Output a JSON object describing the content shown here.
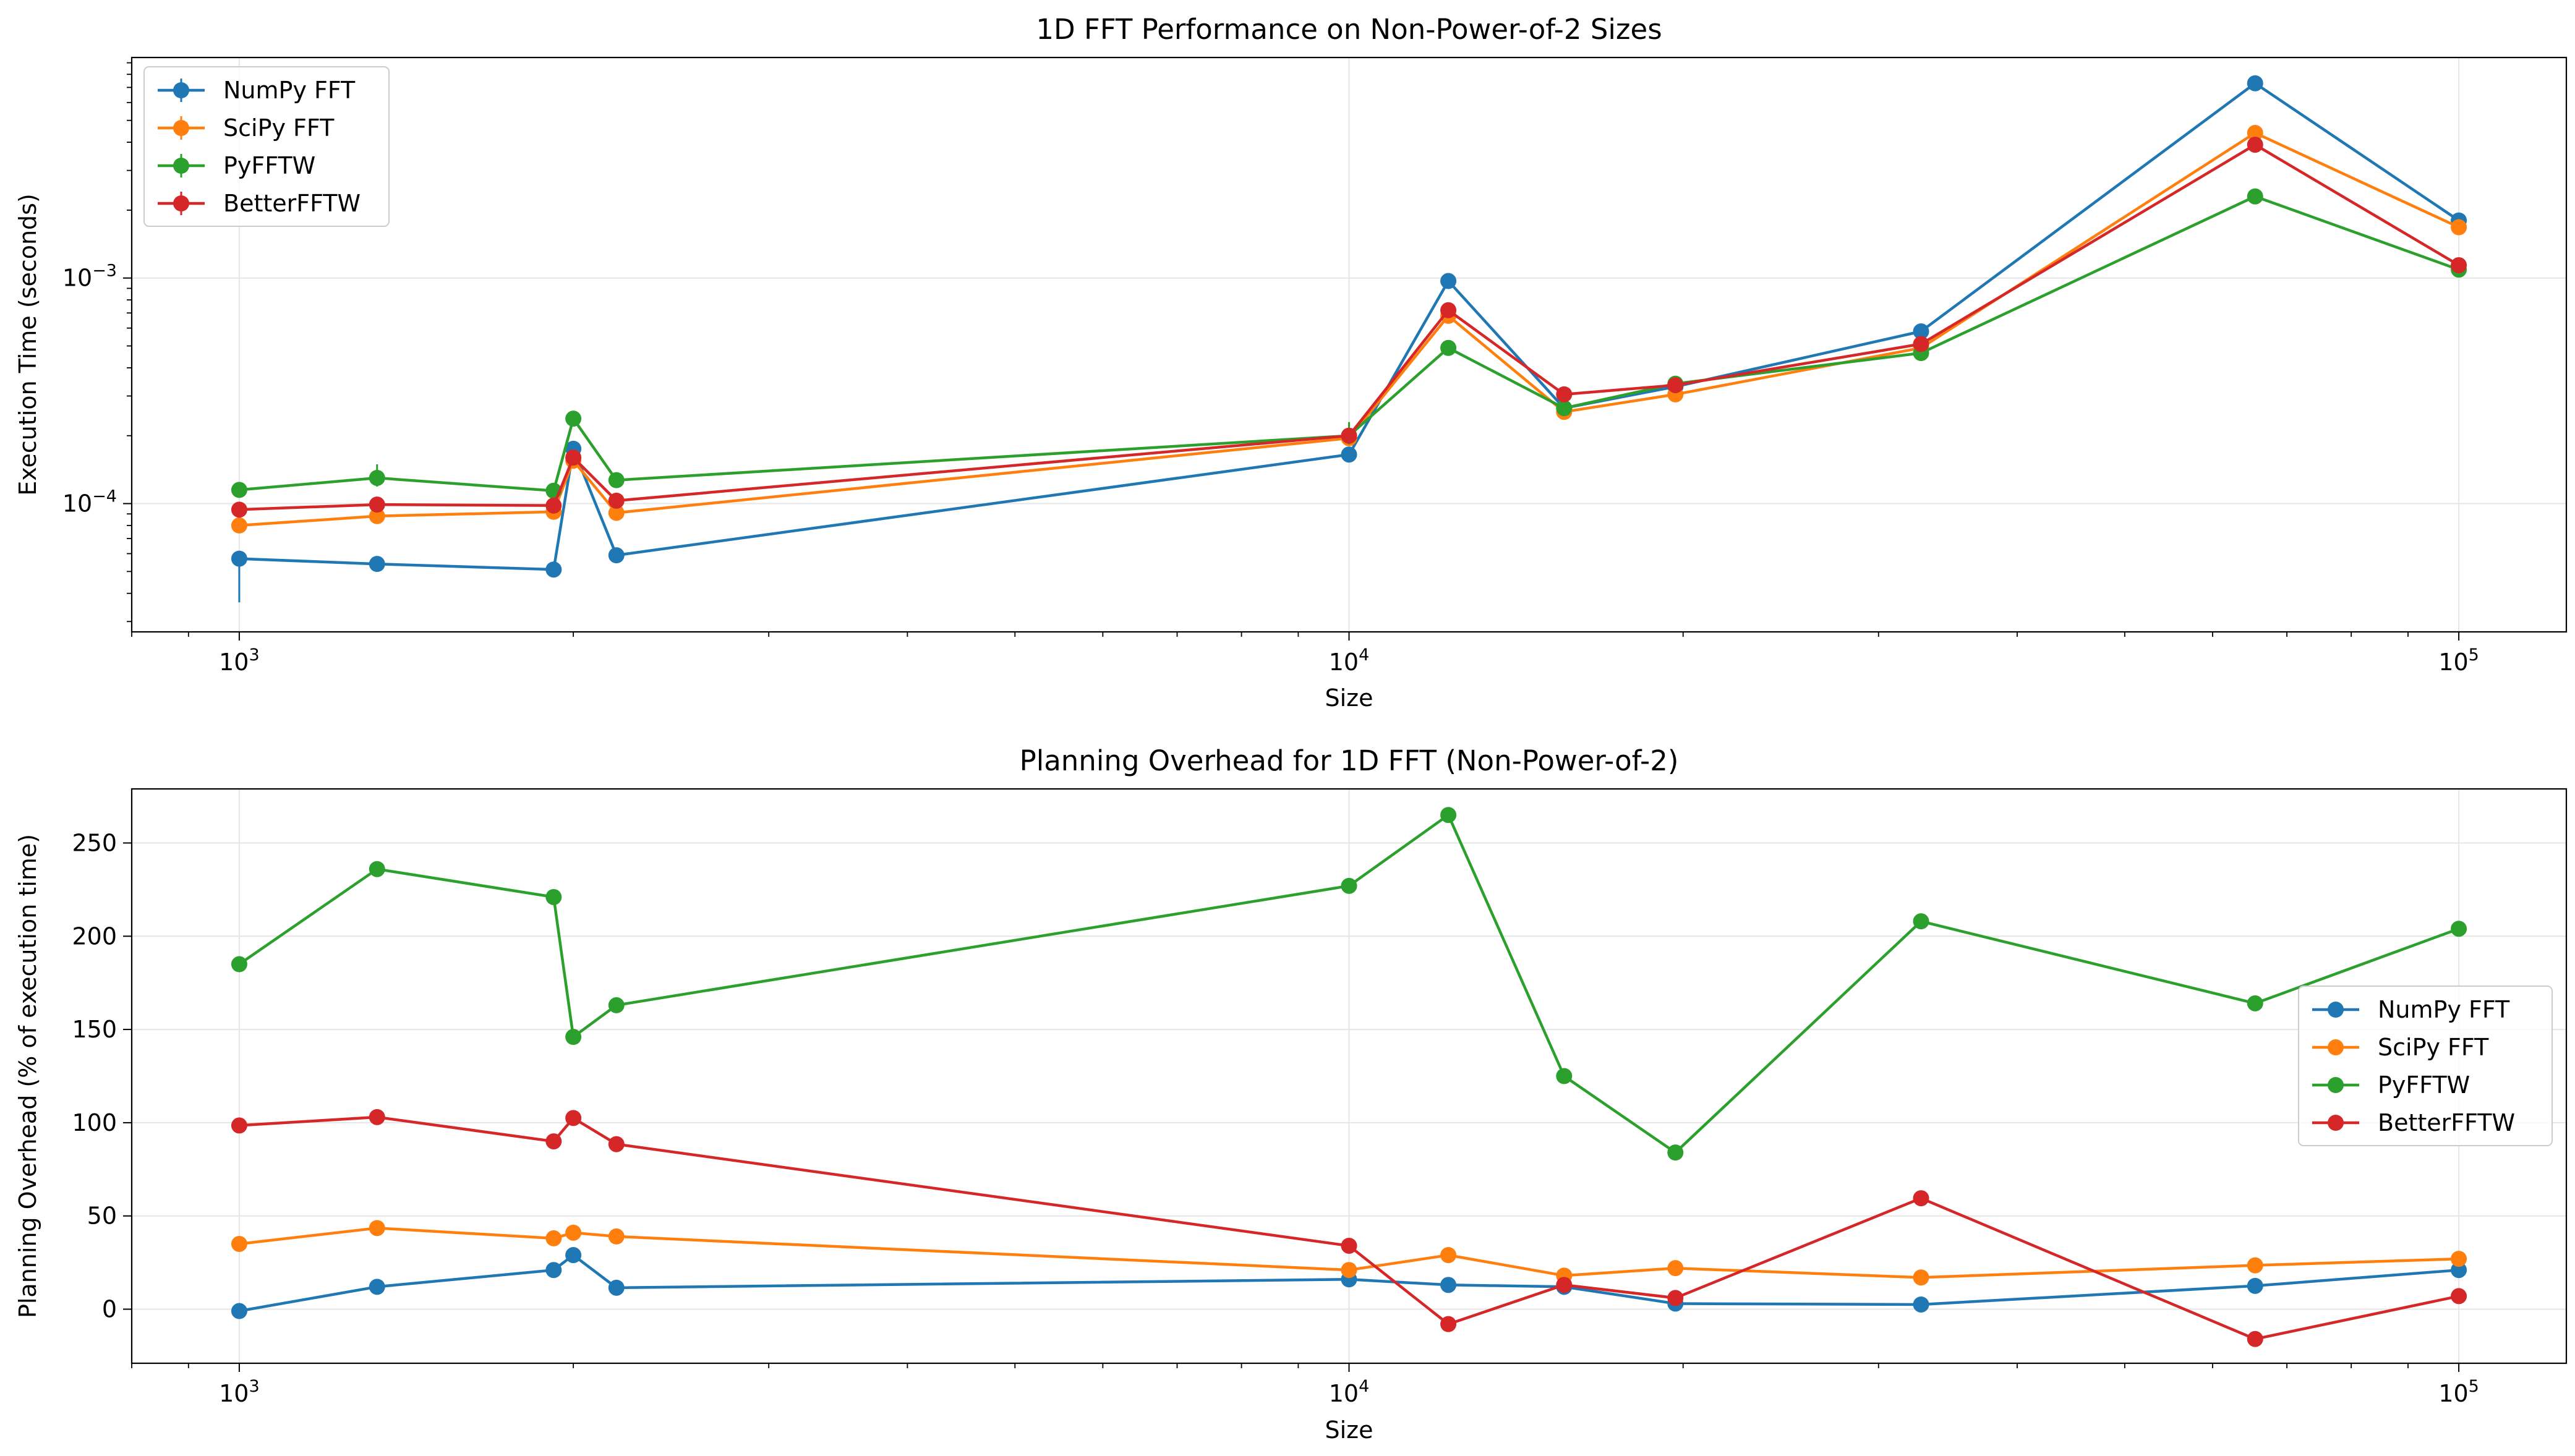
{
  "chart_data": [
    {
      "type": "line",
      "title": "1D FFT Performance on Non-Power-of-2 Sizes",
      "xlabel": "Size",
      "ylabel": "Execution Time (seconds)",
      "xscale": "log",
      "yscale": "log",
      "xlim": [
        800,
        125000
      ],
      "ylim": [
        2.7e-05,
        0.0095
      ],
      "grid": true,
      "legend": "top-left",
      "error_bars": true,
      "x_ticks": [
        {
          "value": 1000,
          "base": "10",
          "exp": "3"
        },
        {
          "value": 10000,
          "base": "10",
          "exp": "4"
        },
        {
          "value": 100000,
          "base": "10",
          "exp": "5"
        }
      ],
      "y_ticks": [
        {
          "value": 0.0001,
          "base": "10",
          "exp": "−4"
        },
        {
          "value": 0.001,
          "base": "10",
          "exp": "−3"
        }
      ],
      "x": [
        1000,
        1331,
        1920,
        2000,
        2187,
        10000,
        12288,
        15625,
        19683,
        32768,
        65536,
        100000
      ],
      "series": [
        {
          "name": "NumPy FFT",
          "color": "#1f77b4",
          "values": [
            5.7e-05,
            5.4e-05,
            5.1e-05,
            0.000175,
            5.9e-05,
            0.000165,
            0.00097,
            0.000265,
            0.00033,
            0.00058,
            0.0073,
            0.0018
          ]
        },
        {
          "name": "SciPy FFT",
          "color": "#ff7f0e",
          "values": [
            8e-05,
            8.8e-05,
            9.2e-05,
            0.000155,
            9.1e-05,
            0.000195,
            0.00068,
            0.000255,
            0.000305,
            0.00049,
            0.0044,
            0.00168
          ]
        },
        {
          "name": "PyFFTW",
          "color": "#2ca02c",
          "values": [
            0.000115,
            0.00013,
            0.000114,
            0.000238,
            0.000127,
            0.0002,
            0.00049,
            0.000265,
            0.00034,
            0.000465,
            0.0023,
            0.00109
          ]
        },
        {
          "name": "BetterFFTW",
          "color": "#d62728",
          "values": [
            9.4e-05,
            9.9e-05,
            9.8e-05,
            0.00016,
            0.000103,
            0.0002,
            0.00072,
            0.000305,
            0.000335,
            0.00051,
            0.0039,
            0.00114
          ]
        }
      ]
    },
    {
      "type": "line",
      "title": "Planning Overhead for 1D FFT (Non-Power-of-2)",
      "xlabel": "Size",
      "ylabel": "Planning Overhead (% of execution time)",
      "xscale": "log",
      "yscale": "linear",
      "xlim": [
        800,
        125000
      ],
      "ylim": [
        -29,
        279
      ],
      "grid": true,
      "legend": "center-right",
      "x_ticks": [
        {
          "value": 1000,
          "base": "10",
          "exp": "3"
        },
        {
          "value": 10000,
          "base": "10",
          "exp": "4"
        },
        {
          "value": 100000,
          "base": "10",
          "exp": "5"
        }
      ],
      "y_ticks": [
        {
          "value": 0,
          "label": "0"
        },
        {
          "value": 50,
          "label": "50"
        },
        {
          "value": 100,
          "label": "100"
        },
        {
          "value": 150,
          "label": "150"
        },
        {
          "value": 200,
          "label": "200"
        },
        {
          "value": 250,
          "label": "250"
        }
      ],
      "x": [
        1000,
        1331,
        1920,
        2000,
        2187,
        10000,
        12288,
        15625,
        19683,
        32768,
        65536,
        100000
      ],
      "series": [
        {
          "name": "NumPy FFT",
          "color": "#1f77b4",
          "values": [
            -1,
            12,
            21,
            29,
            11.5,
            16,
            13,
            12,
            3,
            2.5,
            12.5,
            21
          ]
        },
        {
          "name": "SciPy FFT",
          "color": "#ff7f0e",
          "values": [
            35,
            43.5,
            38,
            41,
            39,
            21,
            29,
            18,
            22,
            17,
            23.5,
            27
          ]
        },
        {
          "name": "PyFFTW",
          "color": "#2ca02c",
          "values": [
            185,
            236,
            221,
            146,
            163,
            227,
            265,
            125,
            84,
            208,
            164,
            204
          ]
        },
        {
          "name": "BetterFFTW",
          "color": "#d62728",
          "values": [
            98.5,
            103,
            90,
            102.5,
            88.5,
            34,
            -8,
            13,
            6,
            59.5,
            -16,
            7
          ]
        }
      ]
    }
  ]
}
